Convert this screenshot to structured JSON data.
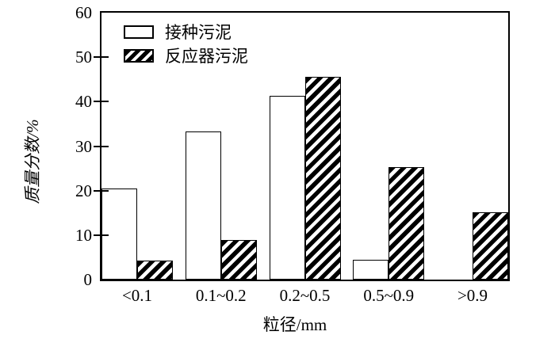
{
  "colors": {
    "ink": "#000000",
    "background": "#ffffff"
  },
  "chart_data": {
    "type": "bar",
    "title": "",
    "xlabel": "粒径/mm",
    "ylabel": "质量分数/%",
    "categories": [
      "<0.1",
      "0.1~0.2",
      "0.2~0.5",
      "0.5~0.9",
      ">0.9"
    ],
    "series": [
      {
        "name": "接种污泥",
        "fill": "plain",
        "values": [
          20.4,
          33.3,
          41.3,
          4.5,
          0
        ]
      },
      {
        "name": "反应器污泥",
        "fill": "hatch",
        "values": [
          4.2,
          8.9,
          45.5,
          25.2,
          15.2
        ]
      }
    ],
    "ylim": [
      0,
      60
    ],
    "yticks": [
      0,
      10,
      20,
      30,
      40,
      50,
      60
    ],
    "grid": false,
    "legend_position": "upper-left-inside"
  }
}
